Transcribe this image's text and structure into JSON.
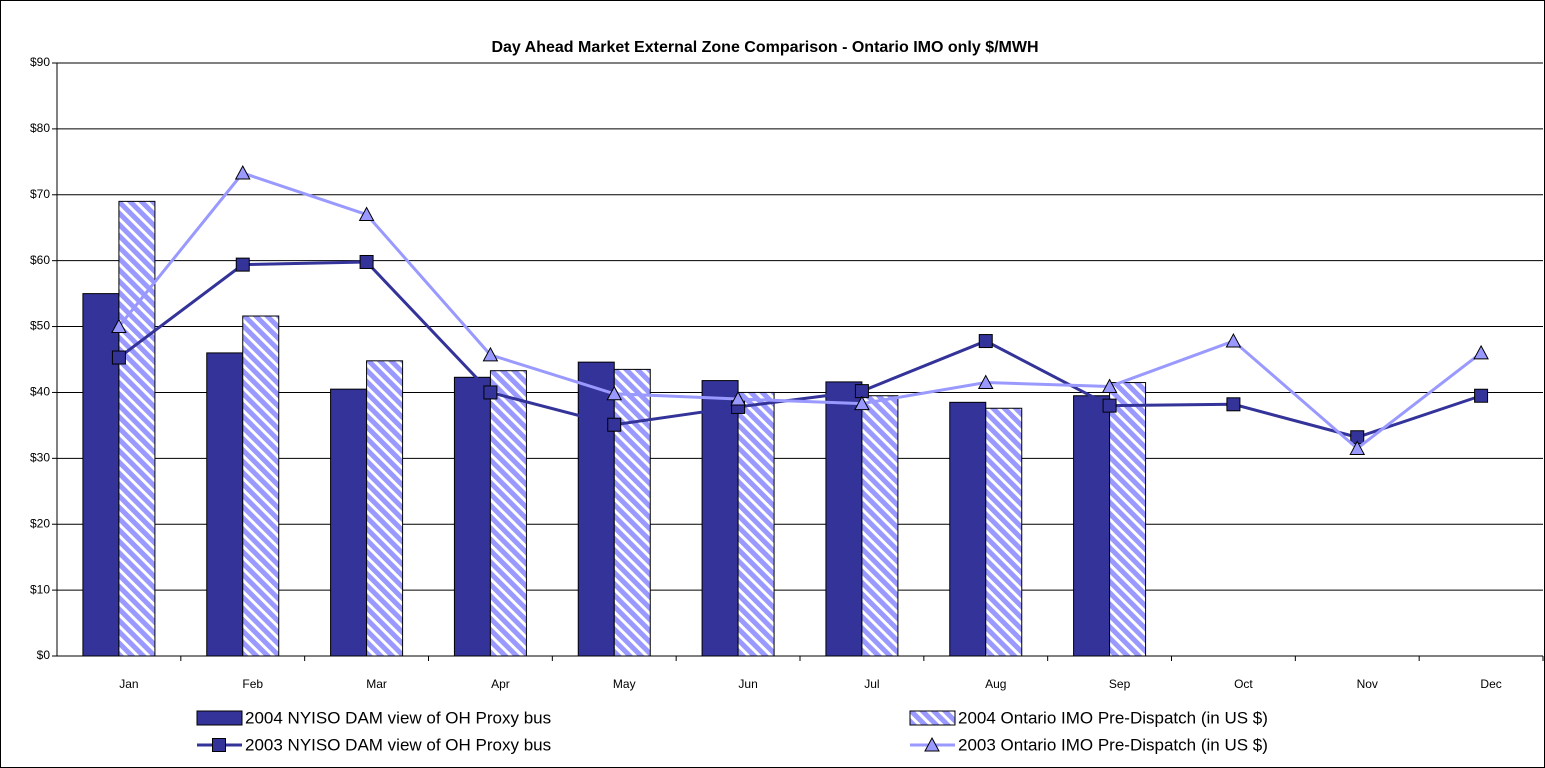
{
  "chart_data": {
    "type": "bar",
    "title": "Day Ahead Market External Zone Comparison - Ontario IMO only $/MWH",
    "categories": [
      "Jan",
      "Feb",
      "Mar",
      "Apr",
      "May",
      "Jun",
      "Jul",
      "Aug",
      "Sep",
      "Oct",
      "Nov",
      "Dec"
    ],
    "series": [
      {
        "name": "2004 NYISO DAM view of OH Proxy bus",
        "type": "bar",
        "color": "#333399",
        "values": [
          55,
          46,
          40.5,
          42.3,
          44.6,
          41.8,
          41.6,
          38.5,
          39.5,
          null,
          null,
          null
        ]
      },
      {
        "name": "2004 Ontario IMO Pre-Dispatch (in US $)",
        "type": "bar",
        "color": "#9999ff",
        "hatch": true,
        "values": [
          69,
          51.6,
          44.8,
          43.3,
          43.5,
          40,
          39.5,
          37.6,
          41.5,
          null,
          null,
          null
        ]
      },
      {
        "name": "2003 NYISO DAM view of OH Proxy bus",
        "type": "line",
        "marker": "square",
        "color": "#333399",
        "values": [
          45.3,
          59.4,
          59.8,
          40,
          35.1,
          37.8,
          40.2,
          47.8,
          38,
          38.2,
          33.2,
          39.5
        ]
      },
      {
        "name": "2003 Ontario IMO Pre-Dispatch (in US $)",
        "type": "line",
        "marker": "triangle",
        "color": "#9999ff",
        "values": [
          50,
          73.3,
          67,
          45.7,
          39.8,
          39,
          38.3,
          41.5,
          40.9,
          47.8,
          31.5,
          46
        ]
      }
    ],
    "ylim": [
      0,
      90
    ],
    "yticks": [
      {
        "value": 0,
        "label": "$0"
      },
      {
        "value": 10,
        "label": "$10"
      },
      {
        "value": 20,
        "label": "$20"
      },
      {
        "value": 30,
        "label": "$30"
      },
      {
        "value": 40,
        "label": "$40"
      },
      {
        "value": 50,
        "label": "$50"
      },
      {
        "value": 60,
        "label": "$60"
      },
      {
        "value": 70,
        "label": "$70"
      },
      {
        "value": 80,
        "label": "$80"
      },
      {
        "value": 90,
        "label": "$90"
      }
    ],
    "grid": true
  }
}
